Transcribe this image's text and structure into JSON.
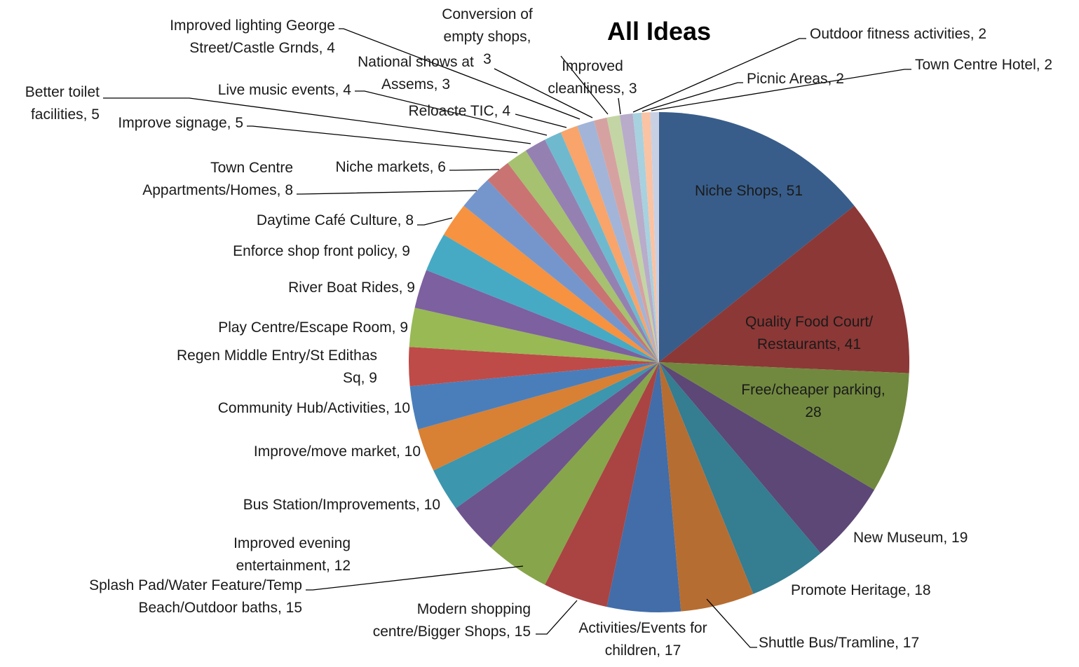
{
  "chart_data": {
    "type": "pie",
    "title": "All Ideas",
    "start_angle_deg": 0,
    "direction": "clockwise",
    "legend": "none",
    "categories": [
      "Niche Shops",
      "Quality Food Court/ Restaurants",
      "Free/cheaper parking",
      "New Museum",
      "Promote Heritage",
      "Shuttle Bus/Tramline",
      "Activities/Events for children",
      "Modern shopping centre/Bigger Shops",
      "Splash Pad/Water Feature/Temp Beach/Outdoor baths",
      "Improved evening entertainment",
      "Bus Station/Improvements",
      "Improve/move market",
      "Community Hub/Activities",
      "Regen Middle Entry/St Edithas Sq",
      "Play Centre/Escape Room",
      "River Boat Rides",
      "Enforce shop front policy",
      "Daytime Café Culture",
      "Town Centre Appartments/Homes",
      "Niche markets",
      "Improve signage",
      "Better toilet facilities",
      "Live music events",
      "Improved lighting George Street/Castle Grnds",
      "Reloacte TIC",
      "National shows at Assems",
      "Conversion of empty shops",
      "Improved cleanliness",
      "Outdoor fitness activities",
      "Picnic Areas",
      "Town Centre Hotel"
    ],
    "values": [
      51,
      41,
      28,
      19,
      18,
      17,
      17,
      15,
      15,
      12,
      10,
      10,
      10,
      9,
      9,
      9,
      9,
      8,
      8,
      6,
      5,
      5,
      4,
      4,
      4,
      3,
      3,
      3,
      2,
      2,
      2
    ],
    "colors": [
      "#385d8a",
      "#8c3836",
      "#71893f",
      "#5c4776",
      "#357d91",
      "#b66d31",
      "#426da9",
      "#a94442",
      "#87a54a",
      "#6e548d",
      "#3c96ae",
      "#d88033",
      "#4a7ebb",
      "#be4b48",
      "#98b954",
      "#7d60a0",
      "#46aac5",
      "#f69240",
      "#7596cc",
      "#c97472",
      "#a6c16f",
      "#9481b2",
      "#6fb9cf",
      "#f8a46a",
      "#a2b4d8",
      "#d6a2a1",
      "#c3d5a4",
      "#b8acca",
      "#a7d1df",
      "#fac3a3",
      "#c8d0e4"
    ],
    "labels": [
      [
        "Niche Shops, 51"
      ],
      [
        "Quality Food Court/",
        "Restaurants, 41"
      ],
      [
        "Free/cheaper parking,",
        "28"
      ],
      [
        "New Museum, 19"
      ],
      [
        "Promote Heritage, 18"
      ],
      [
        "Shuttle Bus/Tramline, 17"
      ],
      [
        "Activities/Events for",
        "children, 17"
      ],
      [
        "Modern shopping",
        "centre/Bigger Shops, 15"
      ],
      [
        "Splash Pad/Water Feature/Temp",
        "Beach/Outdoor baths, 15"
      ],
      [
        "Improved evening",
        "entertainment, 12"
      ],
      [
        "Bus Station/Improvements, 10"
      ],
      [
        "Improve/move market, 10"
      ],
      [
        "Community Hub/Activities, 10"
      ],
      [
        "Regen Middle Entry/St Edithas",
        "Sq, 9"
      ],
      [
        "Play Centre/Escape Room, 9"
      ],
      [
        "River Boat Rides, 9"
      ],
      [
        "Enforce shop front policy, 9"
      ],
      [
        "Daytime Café Culture, 8"
      ],
      [
        "Town Centre",
        "Appartments/Homes, 8"
      ],
      [
        "Niche markets, 6"
      ],
      [
        "Improve signage, 5"
      ],
      [
        "Better toilet",
        "facilities, 5"
      ],
      [
        "Live music events, 4"
      ],
      [
        "Improved lighting George",
        "Street/Castle Grnds, 4"
      ],
      [
        "Reloacte TIC, 4"
      ],
      [
        "National shows at",
        "Assems, 3"
      ],
      [
        "Conversion of",
        "empty shops,",
        "3"
      ],
      [
        "Improved",
        "cleanliness, 3"
      ],
      [
        "Outdoor fitness activities, 2"
      ],
      [
        "Picnic Areas, 2"
      ],
      [
        "Town Centre Hotel, 2"
      ]
    ]
  }
}
